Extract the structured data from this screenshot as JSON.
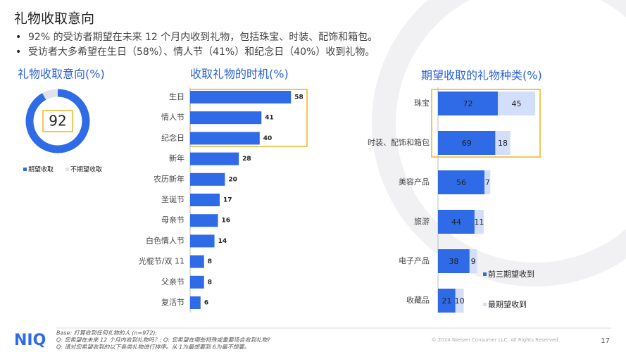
{
  "header": {
    "title": "礼物收取意向",
    "bullets": [
      "92% 的受访者期望在未来 12 个月内收到礼物，包括珠宝、时装、配饰和箱包。",
      "受访者大多希望在生日（58%）、情人节（41%）和纪念日（40%）收到礼物。"
    ]
  },
  "chart_data": [
    {
      "type": "donut",
      "title": "礼物收取意向(%)",
      "categories": [
        "期望收取",
        "不期望收取"
      ],
      "values": [
        92,
        8
      ],
      "colors": [
        "#2f6be6",
        "#dfe3ea"
      ]
    },
    {
      "type": "bar",
      "title": "收取礼物的时机(%)",
      "categories": [
        "生日",
        "情人节",
        "纪念日",
        "新年",
        "农历新年",
        "圣诞节",
        "母亲节",
        "白色情人节",
        "光棍节/双 11",
        "父亲节",
        "复活节"
      ],
      "values": [
        58,
        41,
        40,
        28,
        20,
        17,
        16,
        14,
        8,
        8,
        6
      ],
      "color": "#2f6be6"
    },
    {
      "type": "stacked_bar",
      "title": "期望收取的礼物种类(%)",
      "categories": [
        "珠宝",
        "时装、配饰和箱包",
        "美容产品",
        "旅游",
        "电子产品",
        "收藏品"
      ],
      "series": [
        {
          "name": "前三期望收到",
          "color": "#2f6be6",
          "values": [
            72,
            69,
            56,
            44,
            38,
            21
          ]
        },
        {
          "name": "最期望收到",
          "color": "#d3defa",
          "values": [
            45,
            18,
            7,
            11,
            9,
            10
          ]
        }
      ]
    }
  ],
  "footer": {
    "logo": "NIQ",
    "notes": [
      "Base: 打算收到任何礼物的人 (n=972);",
      "Q: 您希望在未来 12 个月内收到礼物吗？; Q: 您希望在哪些特殊或重要场合收到礼物?",
      "Q: 请对您希望收到的以下各类礼物进行排序。从 1为最想要到 6为最不想要。"
    ],
    "copyright": "© 2024 Nielsen Consumer LLC. All Rights Reserved.",
    "page": "17"
  }
}
